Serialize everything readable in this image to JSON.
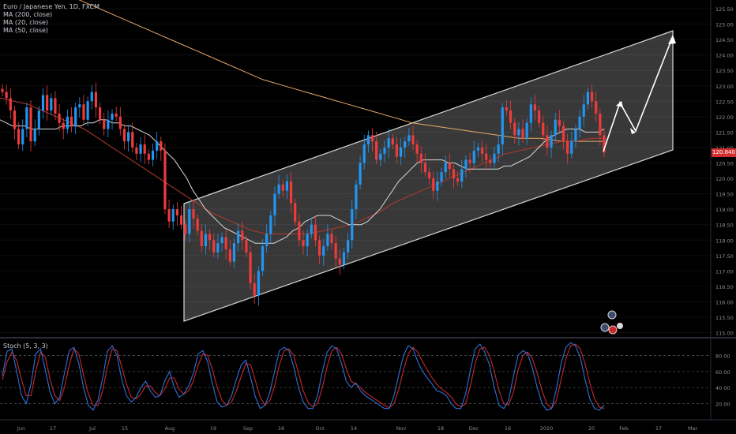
{
  "header": {
    "symbol_line": "Euro / Japanese Yen, 1D, FXCM",
    "indicators": [
      "MA (200, close)",
      "MA (20, close)",
      "MA (50, close)"
    ]
  },
  "last_price": "120.840",
  "colors": {
    "up": "#2196f3",
    "down": "#ef3b3b",
    "ma200": "#e8a96a",
    "ma20": "#d8d8d8",
    "ma50": "#b23a2e",
    "stoch_k": "#2f6fd6",
    "stoch_d": "#c62828",
    "channel": "#d8d8d8",
    "background": "#000000",
    "axis_text": "#8a8d96"
  },
  "stoch": {
    "label": "Stoch (5, 3, 3)",
    "yticks": [
      80,
      60,
      40,
      20
    ]
  },
  "chart_data": [
    {
      "type": "candlestick",
      "title": "Euro / Japanese Yen, 1D, FXCM",
      "x_ticks": [
        "Jun",
        "17",
        "Jul",
        "15",
        "Aug",
        "19",
        "Sep",
        "16",
        "Oct",
        "14",
        "Nov",
        "18",
        "Dec",
        "16",
        "2020",
        "20",
        "Feb",
        "17",
        "Mar"
      ],
      "y_ticks": [
        "125.50",
        "125.00",
        "124.50",
        "124.00",
        "123.50",
        "123.00",
        "122.50",
        "122.00",
        "121.50",
        "121.00",
        "120.50",
        "120.00",
        "119.50",
        "119.00",
        "118.50",
        "118.00",
        "117.50",
        "117.00",
        "116.50",
        "116.00",
        "115.50",
        "115.00"
      ],
      "ylim": [
        115.0,
        125.7
      ],
      "close": [
        122.8,
        122.6,
        122.2,
        121.6,
        121.1,
        121.6,
        122.3,
        121.2,
        121.6,
        122.2,
        122.7,
        122.2,
        122.6,
        122.1,
        121.8,
        121.6,
        122.0,
        121.7,
        122.3,
        122.4,
        121.9,
        122.5,
        122.8,
        122.3,
        121.9,
        121.6,
        121.9,
        122.1,
        122.0,
        121.6,
        121.2,
        121.5,
        121.0,
        120.8,
        121.1,
        120.8,
        120.6,
        120.9,
        121.2,
        120.9,
        119.0,
        118.6,
        119.0,
        118.8,
        118.5,
        118.2,
        119.0,
        118.7,
        118.3,
        117.8,
        118.2,
        118.0,
        117.6,
        117.9,
        118.1,
        117.7,
        117.3,
        117.9,
        118.3,
        118.0,
        117.6,
        116.6,
        116.2,
        117.0,
        117.8,
        118.2,
        118.8,
        119.5,
        119.8,
        119.6,
        119.9,
        119.2,
        118.6,
        118.0,
        117.8,
        118.2,
        118.5,
        118.0,
        117.5,
        117.8,
        118.2,
        117.9,
        117.4,
        117.2,
        117.6,
        118.0,
        119.0,
        119.8,
        120.5,
        121.1,
        121.4,
        121.2,
        120.6,
        120.8,
        121.0,
        121.3,
        121.1,
        120.7,
        121.0,
        121.2,
        121.4,
        121.1,
        120.8,
        120.5,
        120.2,
        120.0,
        119.6,
        119.9,
        120.2,
        120.5,
        120.3,
        120.0,
        119.9,
        120.3,
        120.6,
        120.5,
        120.9,
        121.0,
        120.8,
        120.6,
        120.5,
        120.8,
        121.1,
        122.3,
        122.2,
        121.8,
        121.4,
        121.6,
        121.3,
        121.8,
        122.4,
        122.2,
        121.8,
        121.4,
        121.0,
        121.4,
        121.9,
        121.7,
        121.2,
        120.8,
        121.2,
        121.6,
        122.0,
        122.4,
        122.8,
        122.5,
        122.1,
        121.4,
        120.84
      ],
      "ma20": [
        121.9,
        121.8,
        121.7,
        121.7,
        121.7,
        121.6,
        121.6,
        121.6,
        121.6,
        121.6,
        121.7,
        121.7,
        121.7,
        121.7,
        121.8,
        121.8,
        121.9,
        121.9,
        121.8,
        121.8,
        121.7,
        121.7,
        121.6,
        121.5,
        121.4,
        121.2,
        121.0,
        120.8,
        120.6,
        120.3,
        120.0,
        119.6,
        119.3,
        119.0,
        118.8,
        118.6,
        118.4,
        118.3,
        118.2,
        118.1,
        118.0,
        117.9,
        117.9,
        117.9,
        117.9,
        118.0,
        118.1,
        118.3,
        118.4,
        118.6,
        118.7,
        118.8,
        118.8,
        118.8,
        118.7,
        118.6,
        118.5,
        118.5,
        118.5,
        118.6,
        118.8,
        119.0,
        119.3,
        119.6,
        119.9,
        120.1,
        120.3,
        120.5,
        120.6,
        120.6,
        120.6,
        120.6,
        120.5,
        120.5,
        120.4,
        120.3,
        120.3,
        120.3,
        120.3,
        120.3,
        120.3,
        120.4,
        120.4,
        120.5,
        120.6,
        120.7,
        120.9,
        121.1,
        121.3,
        121.4,
        121.5,
        121.6,
        121.6,
        121.6,
        121.5,
        121.5,
        121.5,
        121.6
      ],
      "ma50": [
        122.6,
        122.5,
        122.4,
        122.2,
        122.0,
        121.8,
        121.6,
        121.3,
        121.0,
        120.7,
        120.4,
        120.1,
        119.8,
        119.5,
        119.2,
        118.9,
        118.7,
        118.5,
        118.3,
        118.2,
        118.2,
        118.2,
        118.2,
        118.3,
        118.4,
        118.5,
        118.7,
        118.9,
        119.2,
        119.4,
        119.6,
        119.8,
        120.0,
        120.2,
        120.4,
        120.6,
        120.8,
        120.9,
        121.0,
        121.1,
        121.2,
        121.2,
        121.3,
        121.3
      ],
      "ma200": [
        125.9,
        125.6,
        125.3,
        125.0,
        124.7,
        124.4,
        124.1,
        123.8,
        123.5,
        123.2,
        123.0,
        122.8,
        122.6,
        122.4,
        122.2,
        122.0,
        121.8,
        121.7,
        121.6,
        121.5,
        121.4,
        121.3,
        121.3,
        121.2,
        121.2,
        121.2
      ]
    },
    {
      "type": "line",
      "title": "Stoch (5, 3, 3)",
      "ylim": [
        0,
        100
      ],
      "series": [
        {
          "name": "%K",
          "values": [
            55,
            85,
            88,
            60,
            30,
            20,
            45,
            82,
            88,
            62,
            34,
            20,
            28,
            58,
            86,
            90,
            70,
            40,
            18,
            12,
            24,
            52,
            85,
            92,
            80,
            50,
            30,
            22,
            28,
            40,
            48,
            36,
            28,
            30,
            48,
            60,
            40,
            28,
            32,
            42,
            58,
            82,
            86,
            72,
            44,
            22,
            16,
            18,
            30,
            50,
            68,
            74,
            52,
            28,
            14,
            18,
            34,
            60,
            86,
            90,
            86,
            66,
            40,
            22,
            14,
            14,
            30,
            60,
            84,
            92,
            88,
            70,
            48,
            40,
            46,
            36,
            30,
            26,
            22,
            18,
            14,
            14,
            30,
            56,
            80,
            92,
            88,
            72,
            60,
            52,
            44,
            36,
            34,
            30,
            20,
            14,
            14,
            32,
            62,
            88,
            94,
            84,
            68,
            40,
            18,
            14,
            24,
            54,
            80,
            86,
            82,
            64,
            40,
            20,
            12,
            14,
            38,
            70,
            90,
            96,
            92,
            78,
            50,
            26,
            14,
            12,
            18
          ]
        },
        {
          "name": "%D",
          "values": [
            50,
            72,
            84,
            74,
            50,
            30,
            30,
            60,
            84,
            78,
            50,
            30,
            24,
            40,
            68,
            88,
            82,
            56,
            32,
            18,
            18,
            36,
            66,
            88,
            86,
            66,
            44,
            28,
            26,
            32,
            42,
            42,
            34,
            30,
            38,
            52,
            52,
            38,
            32,
            36,
            48,
            68,
            82,
            80,
            62,
            40,
            24,
            18,
            22,
            36,
            54,
            70,
            68,
            48,
            28,
            18,
            24,
            42,
            68,
            86,
            88,
            80,
            58,
            36,
            22,
            16,
            20,
            40,
            66,
            86,
            90,
            82,
            64,
            48,
            44,
            40,
            34,
            30,
            26,
            22,
            18,
            15,
            20,
            38,
            62,
            82,
            90,
            84,
            72,
            62,
            52,
            44,
            38,
            34,
            28,
            20,
            16,
            20,
            42,
            70,
            88,
            90,
            80,
            60,
            36,
            20,
            18,
            34,
            62,
            80,
            84,
            76,
            58,
            36,
            20,
            14,
            24,
            50,
            76,
            92,
            94,
            88,
            70,
            46,
            26,
            16,
            14
          ]
        }
      ]
    }
  ]
}
